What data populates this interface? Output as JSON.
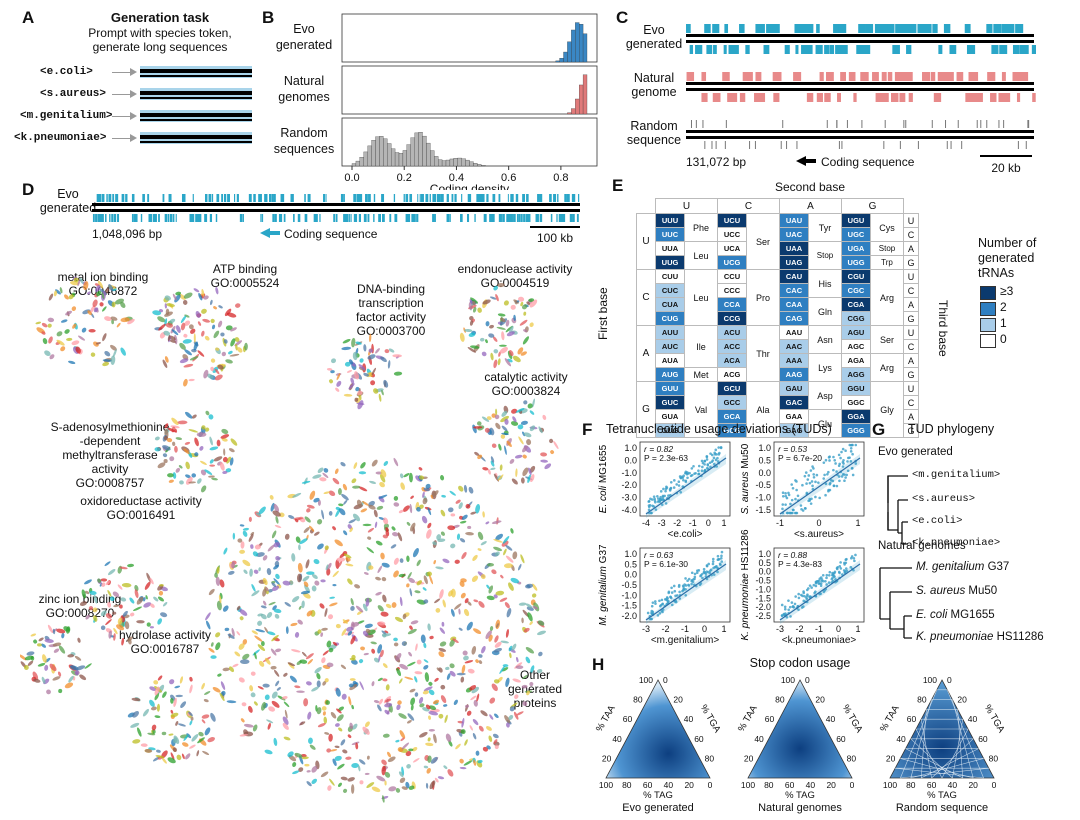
{
  "panels": {
    "A": "A",
    "B": "B",
    "C": "C",
    "D": "D",
    "E": "E",
    "F": "F",
    "G": "G",
    "H": "H"
  },
  "panel_a": {
    "title": "Generation task",
    "subtitle_line1": "Prompt with species token,",
    "subtitle_line2": "generate long sequences",
    "tokens": [
      "<e.coli>",
      "<s.aureus>",
      "<m.genitalium>",
      "<k.pneumoniae>"
    ]
  },
  "panel_b": {
    "rows": [
      {
        "label_line1": "Evo",
        "label_line2": "generated",
        "color": "#3a87c4"
      },
      {
        "label_line1": "Natural",
        "label_line2": "genomes",
        "color": "#e07a7a"
      },
      {
        "label_line1": "Random",
        "label_line2": "sequences",
        "color": "#b5b5b5"
      }
    ],
    "xlabel": "Coding density",
    "xticks": [
      "0.0",
      "0.2",
      "0.4",
      "0.6",
      "0.8"
    ]
  },
  "panel_c": {
    "rows": [
      {
        "label_line1": "Evo",
        "label_line2": "generated",
        "color": "#2aa6c8"
      },
      {
        "label_line1": "Natural",
        "label_line2": "genome",
        "color": "#e88a8a"
      },
      {
        "label_line1": "Random",
        "label_line2": "sequence",
        "color": "#777777"
      }
    ],
    "start_bp": "131,072 bp",
    "coding_label": "Coding sequence",
    "scale": "20 kb"
  },
  "panel_d": {
    "track_line1": "Evo",
    "track_line2": "generated",
    "start_bp": "1,048,096 bp",
    "coding_label": "Coding sequence",
    "scale": "100 kb",
    "clusters": [
      {
        "name_lines": [
          "metal ion binding",
          "GO:0046872"
        ]
      },
      {
        "name_lines": [
          "ATP binding",
          "GO:0005524"
        ]
      },
      {
        "name_lines": [
          "DNA-binding",
          "transcription",
          "factor activity",
          "GO:0003700"
        ]
      },
      {
        "name_lines": [
          "endonuclease activity",
          "GO:0004519"
        ]
      },
      {
        "name_lines": [
          "catalytic activity",
          "GO:0003824"
        ]
      },
      {
        "name_lines": [
          "S-adenosylmethionine",
          "-dependent",
          "methyltransferase",
          "activity",
          "GO:0008757"
        ]
      },
      {
        "name_lines": [
          "oxidoreductase activity",
          "GO:0016491"
        ]
      },
      {
        "name_lines": [
          "zinc ion binding",
          "GO:0008270"
        ]
      },
      {
        "name_lines": [
          "hydrolase activity",
          "GO:0016787"
        ]
      },
      {
        "name_lines": [
          "Other",
          "generated",
          "proteins"
        ]
      }
    ]
  },
  "panel_e": {
    "second_base": "Second base",
    "first_base": "First base",
    "third_base": "Third base",
    "cols": [
      "U",
      "C",
      "A",
      "G"
    ],
    "legend_title_lines": [
      "Number of",
      "generated",
      "tRNAs"
    ],
    "legend": [
      {
        "label": "≥3",
        "color": "#0b3a6e"
      },
      {
        "label": "2",
        "color": "#2f7fc1"
      },
      {
        "label": "1",
        "color": "#a9cde9"
      },
      {
        "label": "0",
        "color": "#ffffff"
      }
    ],
    "blocks": [
      {
        "first": "U",
        "codons": [
          [
            "UUU",
            "UCU",
            "UAU",
            "UGU"
          ],
          [
            "UUC",
            "UCC",
            "UAC",
            "UGC"
          ],
          [
            "UUA",
            "UCA",
            "UAA",
            "UGA"
          ],
          [
            "UUG",
            "UCG",
            "UAG",
            "UGG"
          ]
        ],
        "levels": [
          [
            3,
            3,
            2,
            3
          ],
          [
            2,
            0,
            2,
            2
          ],
          [
            0,
            0,
            3,
            2
          ],
          [
            3,
            2,
            3,
            2
          ]
        ],
        "aa": [
          [
            "Phe",
            "Ser",
            "Tyr",
            "Cys"
          ],
          [
            "Leu",
            "",
            "Stop",
            "Stop"
          ],
          [
            "",
            "",
            "",
            "Trp"
          ]
        ],
        "third": [
          "U",
          "C",
          "A",
          "G"
        ]
      },
      {
        "first": "C",
        "codons": [
          [
            "CUU",
            "CCU",
            "CAU",
            "CGU"
          ],
          [
            "CUC",
            "CCC",
            "CAC",
            "CGC"
          ],
          [
            "CUA",
            "CCA",
            "CAA",
            "CGA"
          ],
          [
            "CUG",
            "CCG",
            "CAG",
            "CGG"
          ]
        ],
        "levels": [
          [
            0,
            0,
            3,
            3
          ],
          [
            1,
            0,
            2,
            2
          ],
          [
            1,
            2,
            2,
            3
          ],
          [
            2,
            3,
            2,
            1
          ]
        ],
        "aa": [
          "Leu",
          "Pro",
          "His",
          "Gln",
          "Arg"
        ],
        "third": [
          "U",
          "C",
          "A",
          "G"
        ]
      },
      {
        "first": "A",
        "codons": [
          [
            "AUU",
            "ACU",
            "AAU",
            "AGU"
          ],
          [
            "AUC",
            "ACC",
            "AAC",
            "AGC"
          ],
          [
            "AUA",
            "ACA",
            "AAA",
            "AGA"
          ],
          [
            "AUG",
            "ACG",
            "AAG",
            "AGG"
          ]
        ],
        "levels": [
          [
            1,
            1,
            0,
            1
          ],
          [
            1,
            1,
            1,
            0
          ],
          [
            0,
            1,
            1,
            0
          ],
          [
            2,
            0,
            2,
            1
          ]
        ],
        "aa": [
          "Ile",
          "Met",
          "Thr",
          "Asn",
          "Lys",
          "Ser",
          "Arg"
        ],
        "third": [
          "U",
          "C",
          "A",
          "G"
        ]
      },
      {
        "first": "G",
        "codons": [
          [
            "GUU",
            "GCU",
            "GAU",
            "GGU"
          ],
          [
            "GUC",
            "GCC",
            "GAC",
            "GGC"
          ],
          [
            "GUA",
            "GCA",
            "GAA",
            "GGA"
          ],
          [
            "GUG",
            "GCG",
            "GAG",
            "GGG"
          ]
        ],
        "levels": [
          [
            2,
            3,
            1,
            1
          ],
          [
            3,
            1,
            3,
            0
          ],
          [
            0,
            2,
            0,
            3
          ],
          [
            1,
            2,
            1,
            2
          ]
        ],
        "aa": [
          "Val",
          "Ala",
          "Asp",
          "Glu",
          "Gly"
        ],
        "third": [
          "U",
          "C",
          "A",
          "G"
        ]
      }
    ]
  },
  "panel_f": {
    "title": "Tetranucleotide usage deviations (TUDs)",
    "plots": [
      {
        "ylabel_species": "E. coli",
        "ylabel_strain": "MG1655",
        "xlabel": "<e.coli>",
        "r": "r = 0.82",
        "p": "P = 2.3e-63",
        "xticks": [
          "-4",
          "-3",
          "-2",
          "-1",
          "0",
          "1"
        ],
        "yticks": [
          "1.0",
          "0.5",
          "0.0",
          "-0.5",
          "-1.0",
          "-1.5",
          "-2.0",
          "-2.5",
          "-3.0",
          "-3.5",
          "-4.0"
        ]
      },
      {
        "ylabel_species": "S. aureus",
        "ylabel_strain": "Mu50",
        "xlabel": "<s.aureus>",
        "r": "r = 0.53",
        "p": "P = 6.7e-20",
        "xticks": [
          "-1",
          "0",
          "1"
        ],
        "yticks": [
          "1.0",
          "0.5",
          "0.0",
          "-0.5",
          "-1.0",
          "-1.5"
        ]
      },
      {
        "ylabel_species": "M. genitalium",
        "ylabel_strain": "G37",
        "xlabel": "<m.genitalium>",
        "r": "r = 0.63",
        "p": "P = 6.1e-30",
        "xticks": [
          "-3",
          "-2",
          "-1",
          "0",
          "1"
        ],
        "yticks": [
          "1.0",
          "0.5",
          "0.0",
          "-0.5",
          "-1.0",
          "-1.5",
          "-2.0"
        ]
      },
      {
        "ylabel_species": "K. pneumoniae",
        "ylabel_strain": "HS11286",
        "xlabel": "<k.pneumoniae>",
        "r": "r = 0.88",
        "p": "P = 4.3e-83",
        "xticks": [
          "-3",
          "-2",
          "-1",
          "0",
          "1"
        ],
        "yticks": [
          "1.0",
          "0.5",
          "0.0",
          "-0.5",
          "-1.0",
          "-1.5",
          "-2.0",
          "-2.5"
        ]
      }
    ]
  },
  "panel_g": {
    "title": "TUD phylogeny",
    "evo_header": "Evo generated",
    "evo_leaves": [
      "<m.genitalium>",
      "<s.aureus>",
      "<e.coli>",
      "<k.pneumoniae>"
    ],
    "nat_header": "Natural genomes",
    "nat_leaves": [
      {
        "species": "M. genitalium",
        "strain": "G37"
      },
      {
        "species": "S. aureus",
        "strain": "Mu50"
      },
      {
        "species": "E. coli",
        "strain": "MG1655"
      },
      {
        "species": "K. pneumoniae",
        "strain": "HS11286"
      }
    ]
  },
  "panel_h": {
    "title": "Stop codon usage",
    "triangles": [
      {
        "caption": "Evo generated"
      },
      {
        "caption": "Natural genomes"
      },
      {
        "caption": "Random sequence"
      }
    ],
    "axis_taa": "% TAA",
    "axis_tga": "% TGA",
    "axis_tag": "% TAG",
    "ticks": [
      "0",
      "20",
      "40",
      "60",
      "80",
      "100"
    ]
  }
}
